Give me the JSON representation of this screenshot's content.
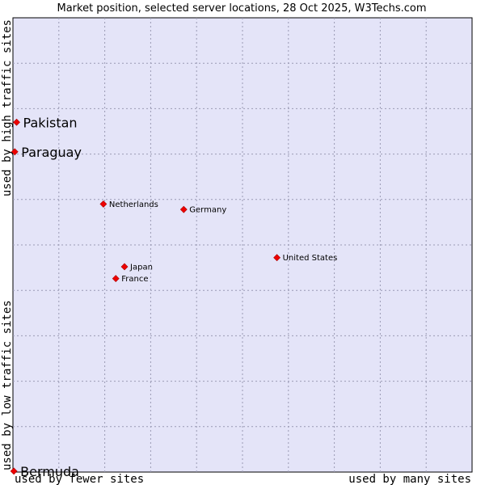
{
  "chart_data": {
    "type": "scatter",
    "title": "Market position, selected server locations, 28 Oct 2025, W3Techs.com",
    "xlabel_left": "used by fewer sites",
    "xlabel_right": "used by many sites",
    "ylabel_top": "used by high traffic sites",
    "ylabel_bottom": "used by low traffic sites",
    "xlim": [
      0,
      100
    ],
    "ylim": [
      0,
      100
    ],
    "grid": true,
    "plot_background": "#e4e4f8",
    "grid_color": "#9a9ab4",
    "point_color": "#ee0000",
    "points": [
      {
        "label": "Pakistan",
        "x": 0.8,
        "y": 77.0,
        "size": "large"
      },
      {
        "label": "Paraguay",
        "x": 0.4,
        "y": 70.5,
        "size": "large"
      },
      {
        "label": "Netherlands",
        "x": 19.7,
        "y": 59.0,
        "size": "small"
      },
      {
        "label": "Germany",
        "x": 37.2,
        "y": 57.8,
        "size": "small"
      },
      {
        "label": "United States",
        "x": 57.5,
        "y": 47.2,
        "size": "small"
      },
      {
        "label": "Japan",
        "x": 24.3,
        "y": 45.2,
        "size": "small"
      },
      {
        "label": "France",
        "x": 22.4,
        "y": 42.6,
        "size": "small"
      },
      {
        "label": "Bermuda",
        "x": 0.2,
        "y": 0.2,
        "size": "large"
      }
    ]
  }
}
